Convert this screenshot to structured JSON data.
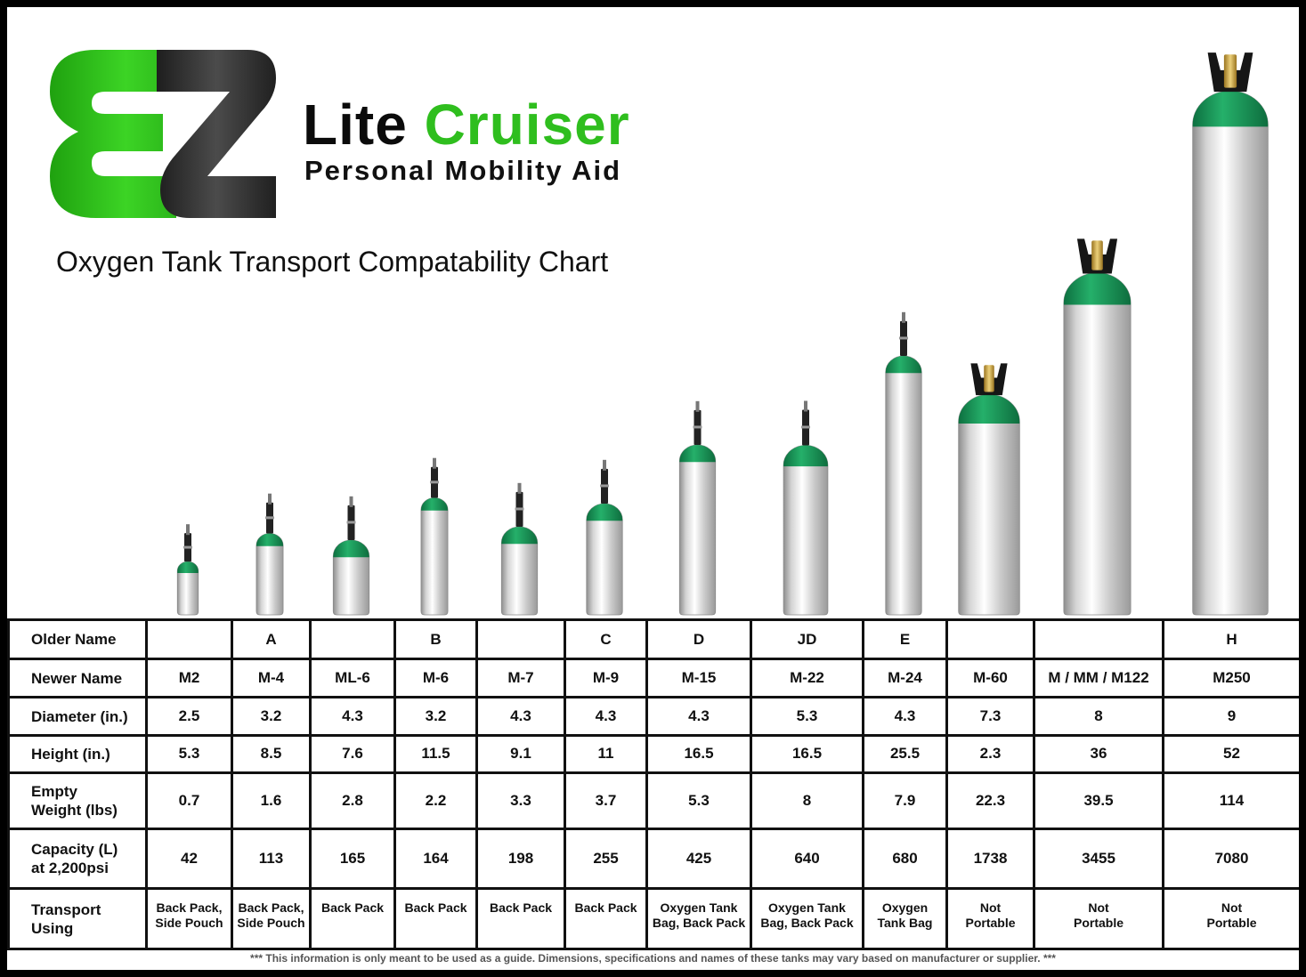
{
  "brand": {
    "logo_letters": "EZ",
    "name_part1": "Lite",
    "name_part2": "Cruiser",
    "tagline": "Personal Mobility Aid"
  },
  "title": "Oxygen Tank Transport Compatability Chart",
  "colors": {
    "green": "#2fbe1e",
    "dark": "#3a3a3a",
    "cap_green": "#1f9e63",
    "valve_gold": "#c9a24a"
  },
  "chart_data": {
    "type": "table",
    "title": "Oxygen Tank Transport Compatability Chart",
    "columns": [
      {
        "older": "",
        "newer": "M2",
        "diameter": "2.5",
        "height": "5.3",
        "weight": "0.7",
        "capacity": "42",
        "transport": [
          "Back Pack,",
          "Side Pouch"
        ],
        "valve": "post"
      },
      {
        "older": "A",
        "newer": "M-4",
        "diameter": "3.2",
        "height": "8.5",
        "weight": "1.6",
        "capacity": "113",
        "transport": [
          "Back Pack,",
          "Side Pouch"
        ],
        "valve": "post"
      },
      {
        "older": "",
        "newer": "ML-6",
        "diameter": "4.3",
        "height": "7.6",
        "weight": "2.8",
        "capacity": "165",
        "transport": [
          "Back Pack"
        ],
        "valve": "post"
      },
      {
        "older": "B",
        "newer": "M-6",
        "diameter": "3.2",
        "height": "11.5",
        "weight": "2.2",
        "capacity": "164",
        "transport": [
          "Back Pack"
        ],
        "valve": "post"
      },
      {
        "older": "",
        "newer": "M-7",
        "diameter": "4.3",
        "height": "9.1",
        "weight": "3.3",
        "capacity": "198",
        "transport": [
          "Back Pack"
        ],
        "valve": "post"
      },
      {
        "older": "C",
        "newer": "M-9",
        "diameter": "4.3",
        "height": "11",
        "weight": "3.7",
        "capacity": "255",
        "transport": [
          "Back Pack"
        ],
        "valve": "post"
      },
      {
        "older": "D",
        "newer": "M-15",
        "diameter": "4.3",
        "height": "16.5",
        "weight": "5.3",
        "capacity": "425",
        "transport": [
          "Oxygen Tank",
          "Bag, Back Pack"
        ],
        "valve": "post"
      },
      {
        "older": "JD",
        "newer": "M-22",
        "diameter": "5.3",
        "height": "16.5",
        "weight": "8",
        "capacity": "640",
        "transport": [
          "Oxygen Tank",
          "Bag, Back Pack"
        ],
        "valve": "post"
      },
      {
        "older": "E",
        "newer": "M-24",
        "diameter": "4.3",
        "height": "25.5",
        "weight": "7.9",
        "capacity": "680",
        "transport": [
          "Oxygen",
          "Tank Bag"
        ],
        "valve": "post"
      },
      {
        "older": "",
        "newer": "M-60",
        "diameter": "7.3",
        "height": "2.3",
        "weight": "22.3",
        "capacity": "1738",
        "transport": [
          "Not",
          "Portable"
        ],
        "valve": "guard"
      },
      {
        "older": "",
        "newer": "M / MM / M122",
        "diameter": "8",
        "height": "36",
        "weight": "39.5",
        "capacity": "3455",
        "transport": [
          "Not",
          "Portable"
        ],
        "valve": "guard"
      },
      {
        "older": "H",
        "newer": "M250",
        "diameter": "9",
        "height": "52",
        "weight": "114",
        "capacity": "7080",
        "transport": [
          "Not",
          "Portable"
        ],
        "valve": "guard"
      }
    ]
  },
  "row_labels": {
    "older": [
      "Older Name"
    ],
    "newer": [
      "Newer Name"
    ],
    "diameter": [
      "Diameter (in.)"
    ],
    "height": [
      "Height (in.)"
    ],
    "weight": [
      "Empty",
      "Weight (lbs)"
    ],
    "capacity": [
      "Capacity (L)",
      "at 2,200psi"
    ],
    "transport": [
      "Transport",
      "Using"
    ]
  },
  "disclaimer": "*** This information is only meant to be used as a guide.  Dimensions, specifications and names of these tanks may vary based on manufacturer or supplier. ***"
}
